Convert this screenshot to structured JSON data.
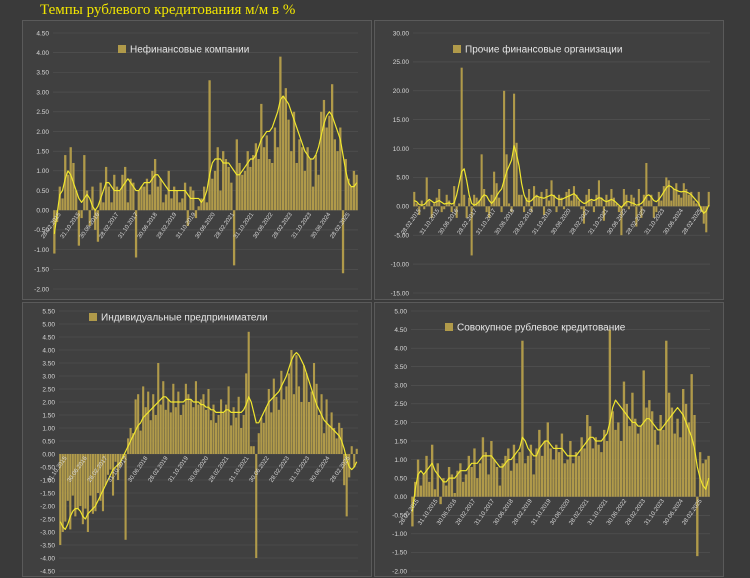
{
  "title": "Темпы рублевого кредитования м/м в %",
  "colors": {
    "bar": "#b09a4a",
    "line": "#f0e62e",
    "grid": "#555555",
    "text": "#d8d8d8"
  },
  "chart_data": [
    {
      "type": "bar",
      "legend": "Нефинансовые компании",
      "ylim": [
        -2.0,
        4.5
      ],
      "y_ticks": [
        "4.50",
        "4.00",
        "3.50",
        "3.00",
        "2.50",
        "2.00",
        "1.50",
        "1.00",
        "0.50",
        "0.00",
        "-0.50",
        "-1.00",
        "-1.50",
        "-2.00"
      ],
      "x_ticks": [
        "28.02.2015",
        "31.10.2015",
        "30.06.2016",
        "28.02.2017",
        "31.10.2017",
        "30.06.2018",
        "28.02.2019",
        "31.10.2019",
        "30.06.2020",
        "28.02.2021",
        "31.10.2021",
        "30.06.2022",
        "28.02.2023",
        "31.10.2023",
        "30.06.2024",
        "28.02.2025"
      ],
      "series": [
        {
          "type": "bar",
          "values": [
            -1.1,
            -0.3,
            0.6,
            0.3,
            1.4,
            0.9,
            1.6,
            1.2,
            0.5,
            -0.9,
            -0.2,
            1.4,
            0.5,
            -0.4,
            0.6,
            -0.5,
            -0.8,
            0.7,
            0.2,
            1.1,
            0.6,
            0.2,
            0.9,
            0.6,
            0.5,
            0.9,
            1.1,
            0.2,
            0.8,
            0.7,
            -1.2,
            0.5,
            0.6,
            0.6,
            0.8,
            0.4,
            1.0,
            1.3,
            0.6,
            0.8,
            0.2,
            0.4,
            1.0,
            0.3,
            0.6,
            0.5,
            0.2,
            0.3,
            0.7,
            -0.4,
            0.6,
            0.5,
            -0.2,
            0.1,
            0.3,
            0.6,
            0.2,
            3.3,
            0.8,
            1.0,
            1.6,
            0.5,
            1.5,
            1.3,
            1.1,
            0.7,
            -1.4,
            1.8,
            1.2,
            0.9,
            1.0,
            1.5,
            1.1,
            1.4,
            1.7,
            1.3,
            2.7,
            1.6,
            1.9,
            1.3,
            1.2,
            2.1,
            1.6,
            3.9,
            2.9,
            3.1,
            2.3,
            1.5,
            2.5,
            1.2,
            1.8,
            1.6,
            1.0,
            1.6,
            1.3,
            0.6,
            1.4,
            0.9,
            2.5,
            2.8,
            2.1,
            2.4,
            3.2,
            1.8,
            1.5,
            2.1,
            -1.6,
            1.3,
            0.8,
            0.6,
            1.0,
            0.9
          ]
        },
        {
          "type": "line",
          "values": [
            -0.6,
            -0.1,
            0.4,
            0.5,
            0.8,
            1.0,
            0.9,
            0.7,
            0.5,
            0.3,
            0.2,
            0.3,
            0.4,
            0.3,
            0.1,
            0.0,
            0.1,
            0.3,
            0.5,
            0.7,
            0.7,
            0.6,
            0.5,
            0.5,
            0.5,
            0.6,
            0.7,
            0.8,
            0.7,
            0.6,
            0.5,
            0.5,
            0.6,
            0.7,
            0.7,
            0.7,
            0.8,
            0.9,
            0.9,
            0.8,
            0.7,
            0.6,
            0.5,
            0.5,
            0.5,
            0.5,
            0.5,
            0.5,
            0.5,
            0.4,
            0.3,
            0.3,
            0.3,
            0.3,
            0.2,
            0.3,
            0.5,
            0.9,
            1.2,
            1.3,
            1.3,
            1.3,
            1.2,
            1.2,
            1.2,
            1.1,
            1.0,
            0.9,
            0.9,
            1.0,
            1.1,
            1.2,
            1.3,
            1.3,
            1.4,
            1.6,
            1.8,
            1.9,
            2.0,
            2.0,
            2.1,
            2.3,
            2.5,
            2.8,
            2.9,
            2.8,
            2.7,
            2.5,
            2.3,
            2.1,
            1.9,
            1.7,
            1.5,
            1.4,
            1.3,
            1.3,
            1.4,
            1.6,
            1.9,
            2.2,
            2.4,
            2.5,
            2.4,
            2.2,
            2.0,
            1.8,
            1.4,
            1.0,
            0.7,
            0.6,
            0.6,
            0.7
          ]
        }
      ]
    },
    {
      "type": "bar",
      "legend": "Прочие финансовые организации",
      "ylim": [
        -15,
        30
      ],
      "y_ticks": [
        "30.00",
        "25.00",
        "20.00",
        "15.00",
        "10.00",
        "5.00",
        "0.00",
        "-5.00",
        "-10.00",
        "-15.00"
      ],
      "x_ticks": [
        "28.02.2015",
        "31.10.2015",
        "30.06.2016",
        "28.02.2017",
        "31.10.2017",
        "30.06.2018",
        "28.02.2019",
        "31.10.2019",
        "30.06.2020",
        "28.02.2021",
        "31.10.2021",
        "30.06.2022",
        "28.02.2023",
        "31.10.2023",
        "30.06.2024",
        "28.02.2025"
      ],
      "series": [
        {
          "type": "bar",
          "values": [
            2.5,
            0.5,
            -1.5,
            1.0,
            -0.5,
            5.0,
            1.0,
            -2.0,
            0.5,
            1.5,
            3.0,
            -1.0,
            -0.5,
            2.0,
            1.0,
            -1.0,
            3.5,
            -2.0,
            0.5,
            24.0,
            2.0,
            -2.0,
            1.5,
            -8.5,
            2.0,
            1.5,
            1.0,
            9.0,
            3.0,
            -1.0,
            -2.0,
            2.0,
            6.0,
            4.0,
            1.5,
            -1.0,
            20.0,
            9.0,
            0.5,
            -1.0,
            19.5,
            11.0,
            2.0,
            2.0,
            -1.0,
            1.5,
            3.0,
            -1.0,
            3.5,
            2.0,
            1.5,
            2.5,
            -1.5,
            3.0,
            1.0,
            4.5,
            2.0,
            -1.0,
            2.0,
            1.5,
            -0.5,
            2.5,
            3.0,
            1.0,
            3.5,
            2.0,
            1.0,
            -0.5,
            -3.0,
            2.0,
            3.0,
            1.0,
            -1.0,
            2.0,
            4.5,
            1.5,
            -2.5,
            2.0,
            1.0,
            3.0,
            1.5,
            0.5,
            -1.0,
            -5.0,
            3.0,
            2.0,
            -0.5,
            2.0,
            1.5,
            -3.5,
            3.0,
            -2.0,
            2.0,
            7.5,
            1.0,
            2.0,
            -2.0,
            -1.0,
            2.5,
            1.0,
            3.5,
            5.0,
            4.5,
            1.0,
            3.0,
            4.0,
            2.0,
            1.5,
            4.0,
            3.0,
            2.0,
            2.5,
            1.0,
            0.5,
            2.5,
            -1.0,
            -3.0,
            -4.5,
            2.5
          ]
        },
        {
          "type": "line",
          "values": [
            1.0,
            0.8,
            0.3,
            0.2,
            0.3,
            0.8,
            1.2,
            0.9,
            0.6,
            0.8,
            1.0,
            0.7,
            0.4,
            0.5,
            0.6,
            0.4,
            0.6,
            2.0,
            4.0,
            6.0,
            6.5,
            4.5,
            2.0,
            0.5,
            0.2,
            0.4,
            0.8,
            1.5,
            2.0,
            1.8,
            1.0,
            0.5,
            1.0,
            1.8,
            2.5,
            3.0,
            4.5,
            6.0,
            7.0,
            8.0,
            10.5,
            9.0,
            7.0,
            4.0,
            2.0,
            1.0,
            0.8,
            1.0,
            1.5,
            1.8,
            1.6,
            1.5,
            1.4,
            1.6,
            1.8,
            2.0,
            1.8,
            1.4,
            1.2,
            1.2,
            1.4,
            1.6,
            1.8,
            2.0,
            2.2,
            1.8,
            1.2,
            0.8,
            0.5,
            0.6,
            1.0,
            1.2,
            1.0,
            1.2,
            1.5,
            1.4,
            1.0,
            0.8,
            1.0,
            1.2,
            1.0,
            0.6,
            0.2,
            -0.2,
            0.3,
            0.8,
            0.8,
            0.6,
            0.5,
            0.2,
            0.3,
            0.5,
            1.0,
            1.8,
            2.0,
            1.6,
            1.0,
            0.8,
            1.2,
            1.8,
            2.5,
            3.2,
            3.6,
            3.4,
            3.0,
            2.8,
            2.6,
            2.5,
            2.6,
            2.5,
            2.3,
            2.0,
            1.5,
            1.0,
            0.5,
            -0.5,
            -1.2,
            -0.8,
            0.2
          ]
        }
      ]
    },
    {
      "type": "bar",
      "legend": "Индивидуальные предприниматели",
      "ylim": [
        -4.5,
        5.5
      ],
      "y_ticks": [
        "5.50",
        "5.00",
        "4.50",
        "4.00",
        "3.50",
        "3.00",
        "2.50",
        "2.00",
        "1.50",
        "1.00",
        "0.50",
        "0.00",
        "-0.50",
        "-1.00",
        "-1.50",
        "-2.00",
        "-2.50",
        "-3.00",
        "-3.50",
        "-4.00",
        "-4.50"
      ],
      "x_ticks": [
        "31.10.2015",
        "30.06.2016",
        "28.02.2017",
        "31.10.2017",
        "30.06.2018",
        "28.02.2019",
        "31.10.2019",
        "30.06.2020",
        "28.02.2021",
        "31.10.2021",
        "30.06.2022",
        "28.02.2023",
        "31.10.2023",
        "30.06.2024",
        "28.02.2025"
      ],
      "series": [
        {
          "type": "bar",
          "values": [
            -3.5,
            -3.0,
            -2.6,
            -1.8,
            -2.9,
            -1.6,
            -2.4,
            -2.1,
            -2.0,
            -2.7,
            -2.1,
            -3.0,
            -1.6,
            -2.3,
            -2.2,
            -1.5,
            -1.8,
            -2.2,
            -1.2,
            -0.8,
            -0.6,
            -1.6,
            -0.3,
            -1.0,
            -0.5,
            -0.2,
            -3.3,
            0.6,
            1.0,
            0.8,
            2.1,
            2.3,
            0.9,
            2.6,
            1.8,
            2.4,
            1.3,
            2.3,
            1.5,
            3.5,
            1.9,
            2.8,
            1.7,
            2.1,
            1.6,
            2.7,
            1.8,
            2.4,
            1.5,
            1.9,
            2.7,
            2.3,
            2.1,
            1.8,
            2.8,
            1.9,
            2.1,
            2.3,
            1.7,
            2.5,
            1.3,
            1.9,
            1.2,
            1.5,
            2.1,
            1.6,
            1.9,
            2.6,
            1.1,
            1.8,
            1.4,
            2.2,
            1.0,
            1.5,
            3.1,
            4.7,
            0.3,
            0.3,
            -4.0,
            0.8,
            1.4,
            1.2,
            1.8,
            2.5,
            1.6,
            2.9,
            2.2,
            1.7,
            3.2,
            2.1,
            2.6,
            3.1,
            4.0,
            2.3,
            3.8,
            2.6,
            2.0,
            3.4,
            3.1,
            2.0,
            2.4,
            3.5,
            2.7,
            1.5,
            2.3,
            0.8,
            2.1,
            1.1,
            1.6,
            1.0,
            0.6,
            1.2,
            1.0,
            -1.2,
            -2.4,
            -0.9,
            0.3,
            -0.5,
            0.2
          ]
        },
        {
          "type": "line",
          "values": [
            -2.6,
            -2.8,
            -2.9,
            -2.7,
            -2.4,
            -2.2,
            -2.1,
            -2.1,
            -2.2,
            -2.4,
            -2.5,
            -2.3,
            -2.2,
            -2.1,
            -2.0,
            -1.8,
            -1.6,
            -1.4,
            -1.2,
            -1.0,
            -0.8,
            -0.6,
            -0.5,
            -0.4,
            -0.3,
            -0.1,
            0.1,
            0.3,
            0.5,
            0.7,
            0.9,
            1.1,
            1.2,
            1.4,
            1.5,
            1.6,
            1.7,
            1.8,
            1.9,
            2.0,
            2.1,
            2.2,
            2.2,
            2.1,
            2.0,
            2.0,
            2.0,
            2.0,
            2.0,
            2.0,
            2.1,
            2.1,
            2.1,
            2.0,
            2.0,
            2.0,
            1.9,
            1.9,
            1.8,
            1.8,
            1.7,
            1.7,
            1.6,
            1.6,
            1.6,
            1.6,
            1.7,
            1.7,
            1.6,
            1.6,
            1.6,
            1.6,
            1.6,
            1.7,
            1.9,
            2.2,
            2.0,
            1.6,
            1.2,
            1.2,
            1.4,
            1.6,
            1.8,
            2.0,
            2.1,
            2.2,
            2.3,
            2.4,
            2.6,
            2.8,
            3.0,
            3.3,
            3.6,
            3.8,
            3.9,
            3.8,
            3.6,
            3.4,
            3.1,
            2.8,
            2.5,
            2.2,
            1.9,
            1.7,
            1.5,
            1.3,
            1.2,
            1.1,
            1.0,
            0.9,
            0.8,
            0.7,
            0.5,
            0.2,
            -0.2,
            -0.5,
            -0.6,
            -0.5,
            -0.3
          ]
        }
      ]
    },
    {
      "type": "bar",
      "legend": "Совокупное рублевое кредитование",
      "ylim": [
        -2.0,
        5.0
      ],
      "y_ticks": [
        "5.00",
        "4.50",
        "4.00",
        "3.50",
        "3.00",
        "2.50",
        "2.00",
        "1.50",
        "1.00",
        "0.50",
        "0.00",
        "-0.50",
        "-1.00",
        "-1.50",
        "-2.00"
      ],
      "x_ticks": [
        "28.02.2015",
        "31.10.2015",
        "30.06.2016",
        "28.02.2017",
        "31.10.2017",
        "30.06.2018",
        "28.02.2019",
        "31.10.2019",
        "30.06.2020",
        "28.02.2021",
        "31.10.2021",
        "30.06.2022",
        "28.02.2023",
        "31.10.2023",
        "30.06.2024",
        "28.02.2025"
      ],
      "series": [
        {
          "type": "bar",
          "values": [
            -0.8,
            0.4,
            1.0,
            0.3,
            0.6,
            1.1,
            0.4,
            1.4,
            0.2,
            0.9,
            -0.2,
            0.5,
            0.3,
            0.8,
            0.6,
            0.1,
            0.7,
            0.9,
            0.4,
            0.6,
            1.1,
            0.8,
            1.3,
            0.5,
            0.9,
            1.6,
            1.2,
            0.6,
            1.5,
            1.0,
            0.8,
            0.3,
            0.9,
            1.1,
            1.3,
            0.7,
            1.4,
            0.9,
            1.2,
            4.2,
            0.9,
            1.1,
            1.4,
            0.6,
            1.3,
            1.8,
            1.1,
            1.5,
            2.0,
            1.3,
            1.0,
            1.4,
            1.2,
            1.7,
            0.9,
            1.0,
            1.5,
            0.9,
            1.2,
            1.1,
            1.6,
            1.3,
            2.2,
            1.9,
            1.3,
            1.6,
            1.4,
            1.2,
            1.8,
            1.5,
            4.5,
            2.3,
            1.8,
            2.0,
            1.5,
            3.1,
            2.5,
            1.9,
            2.8,
            2.1,
            1.7,
            1.9,
            3.4,
            2.4,
            2.6,
            2.3,
            1.8,
            1.4,
            2.2,
            1.8,
            4.2,
            2.8,
            2.4,
            1.7,
            2.1,
            1.6,
            2.9,
            2.5,
            2.0,
            3.3,
            2.2,
            -1.6,
            1.2,
            0.9,
            1.0,
            1.1
          ]
        },
        {
          "type": "line",
          "values": [
            -0.4,
            0.2,
            0.6,
            0.7,
            0.6,
            0.7,
            0.8,
            0.9,
            0.7,
            0.6,
            0.5,
            0.4,
            0.4,
            0.5,
            0.5,
            0.5,
            0.6,
            0.7,
            0.7,
            0.7,
            0.8,
            0.9,
            0.9,
            0.9,
            1.0,
            1.1,
            1.1,
            1.1,
            1.1,
            1.0,
            0.9,
            0.8,
            0.8,
            0.9,
            1.0,
            1.0,
            1.1,
            1.2,
            1.3,
            1.6,
            1.5,
            1.3,
            1.2,
            1.1,
            1.1,
            1.3,
            1.4,
            1.5,
            1.5,
            1.4,
            1.3,
            1.3,
            1.3,
            1.3,
            1.2,
            1.1,
            1.1,
            1.1,
            1.1,
            1.2,
            1.3,
            1.4,
            1.5,
            1.6,
            1.6,
            1.5,
            1.5,
            1.5,
            1.6,
            1.7,
            2.0,
            2.4,
            2.6,
            2.5,
            2.4,
            2.3,
            2.2,
            2.1,
            2.0,
            2.0,
            1.9,
            1.9,
            2.0,
            2.1,
            2.1,
            2.0,
            1.9,
            1.8,
            1.8,
            1.9,
            2.0,
            2.1,
            2.2,
            2.3,
            2.4,
            2.3,
            2.2,
            2.0,
            1.8,
            1.6,
            1.3,
            0.8,
            0.5,
            0.3,
            0.2,
            0.5
          ]
        }
      ]
    }
  ]
}
